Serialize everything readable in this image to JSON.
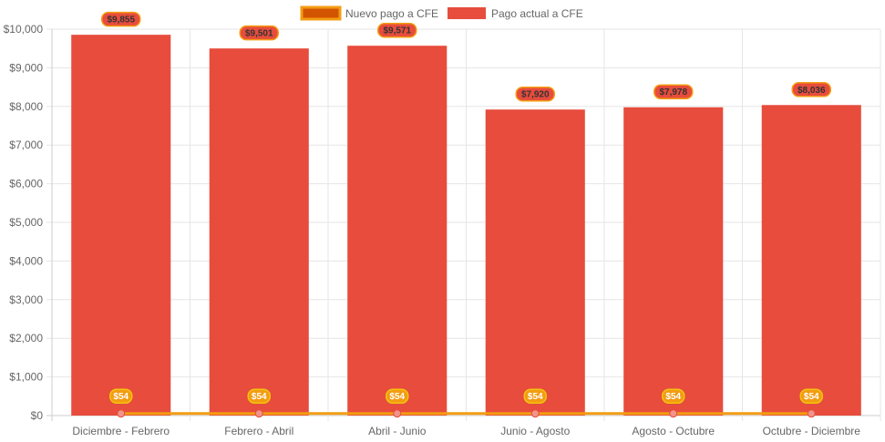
{
  "chart_data": {
    "type": "bar",
    "categories": [
      "Diciembre - Febrero",
      "Febrero - Abril",
      "Abril - Junio",
      "Junio - Agosto",
      "Agosto - Octubre",
      "Octubre - Diciembre"
    ],
    "ylim": [
      0,
      10000
    ],
    "yticks": [
      "$0",
      "$1,000",
      "$2,000",
      "$3,000",
      "$4,000",
      "$5,000",
      "$6,000",
      "$7,000",
      "$8,000",
      "$9,000",
      "$10,000"
    ],
    "legend_position": "top",
    "grid": true,
    "series": [
      {
        "name": "Nuevo pago a CFE",
        "type": "line",
        "values": [
          54,
          54,
          54,
          54,
          54,
          54
        ],
        "labels": [
          "$54",
          "$54",
          "$54",
          "$54",
          "$54",
          "$54"
        ],
        "color": "#f39c12",
        "fill": "#d35400"
      },
      {
        "name": "Pago actual a CFE",
        "type": "bar",
        "values": [
          9855,
          9501,
          9571,
          7920,
          7978,
          8036
        ],
        "labels": [
          "$9,855",
          "$9,501",
          "$9,571",
          "$7,920",
          "$7,978",
          "$8,036"
        ],
        "color": "#e74c3c"
      }
    ]
  }
}
